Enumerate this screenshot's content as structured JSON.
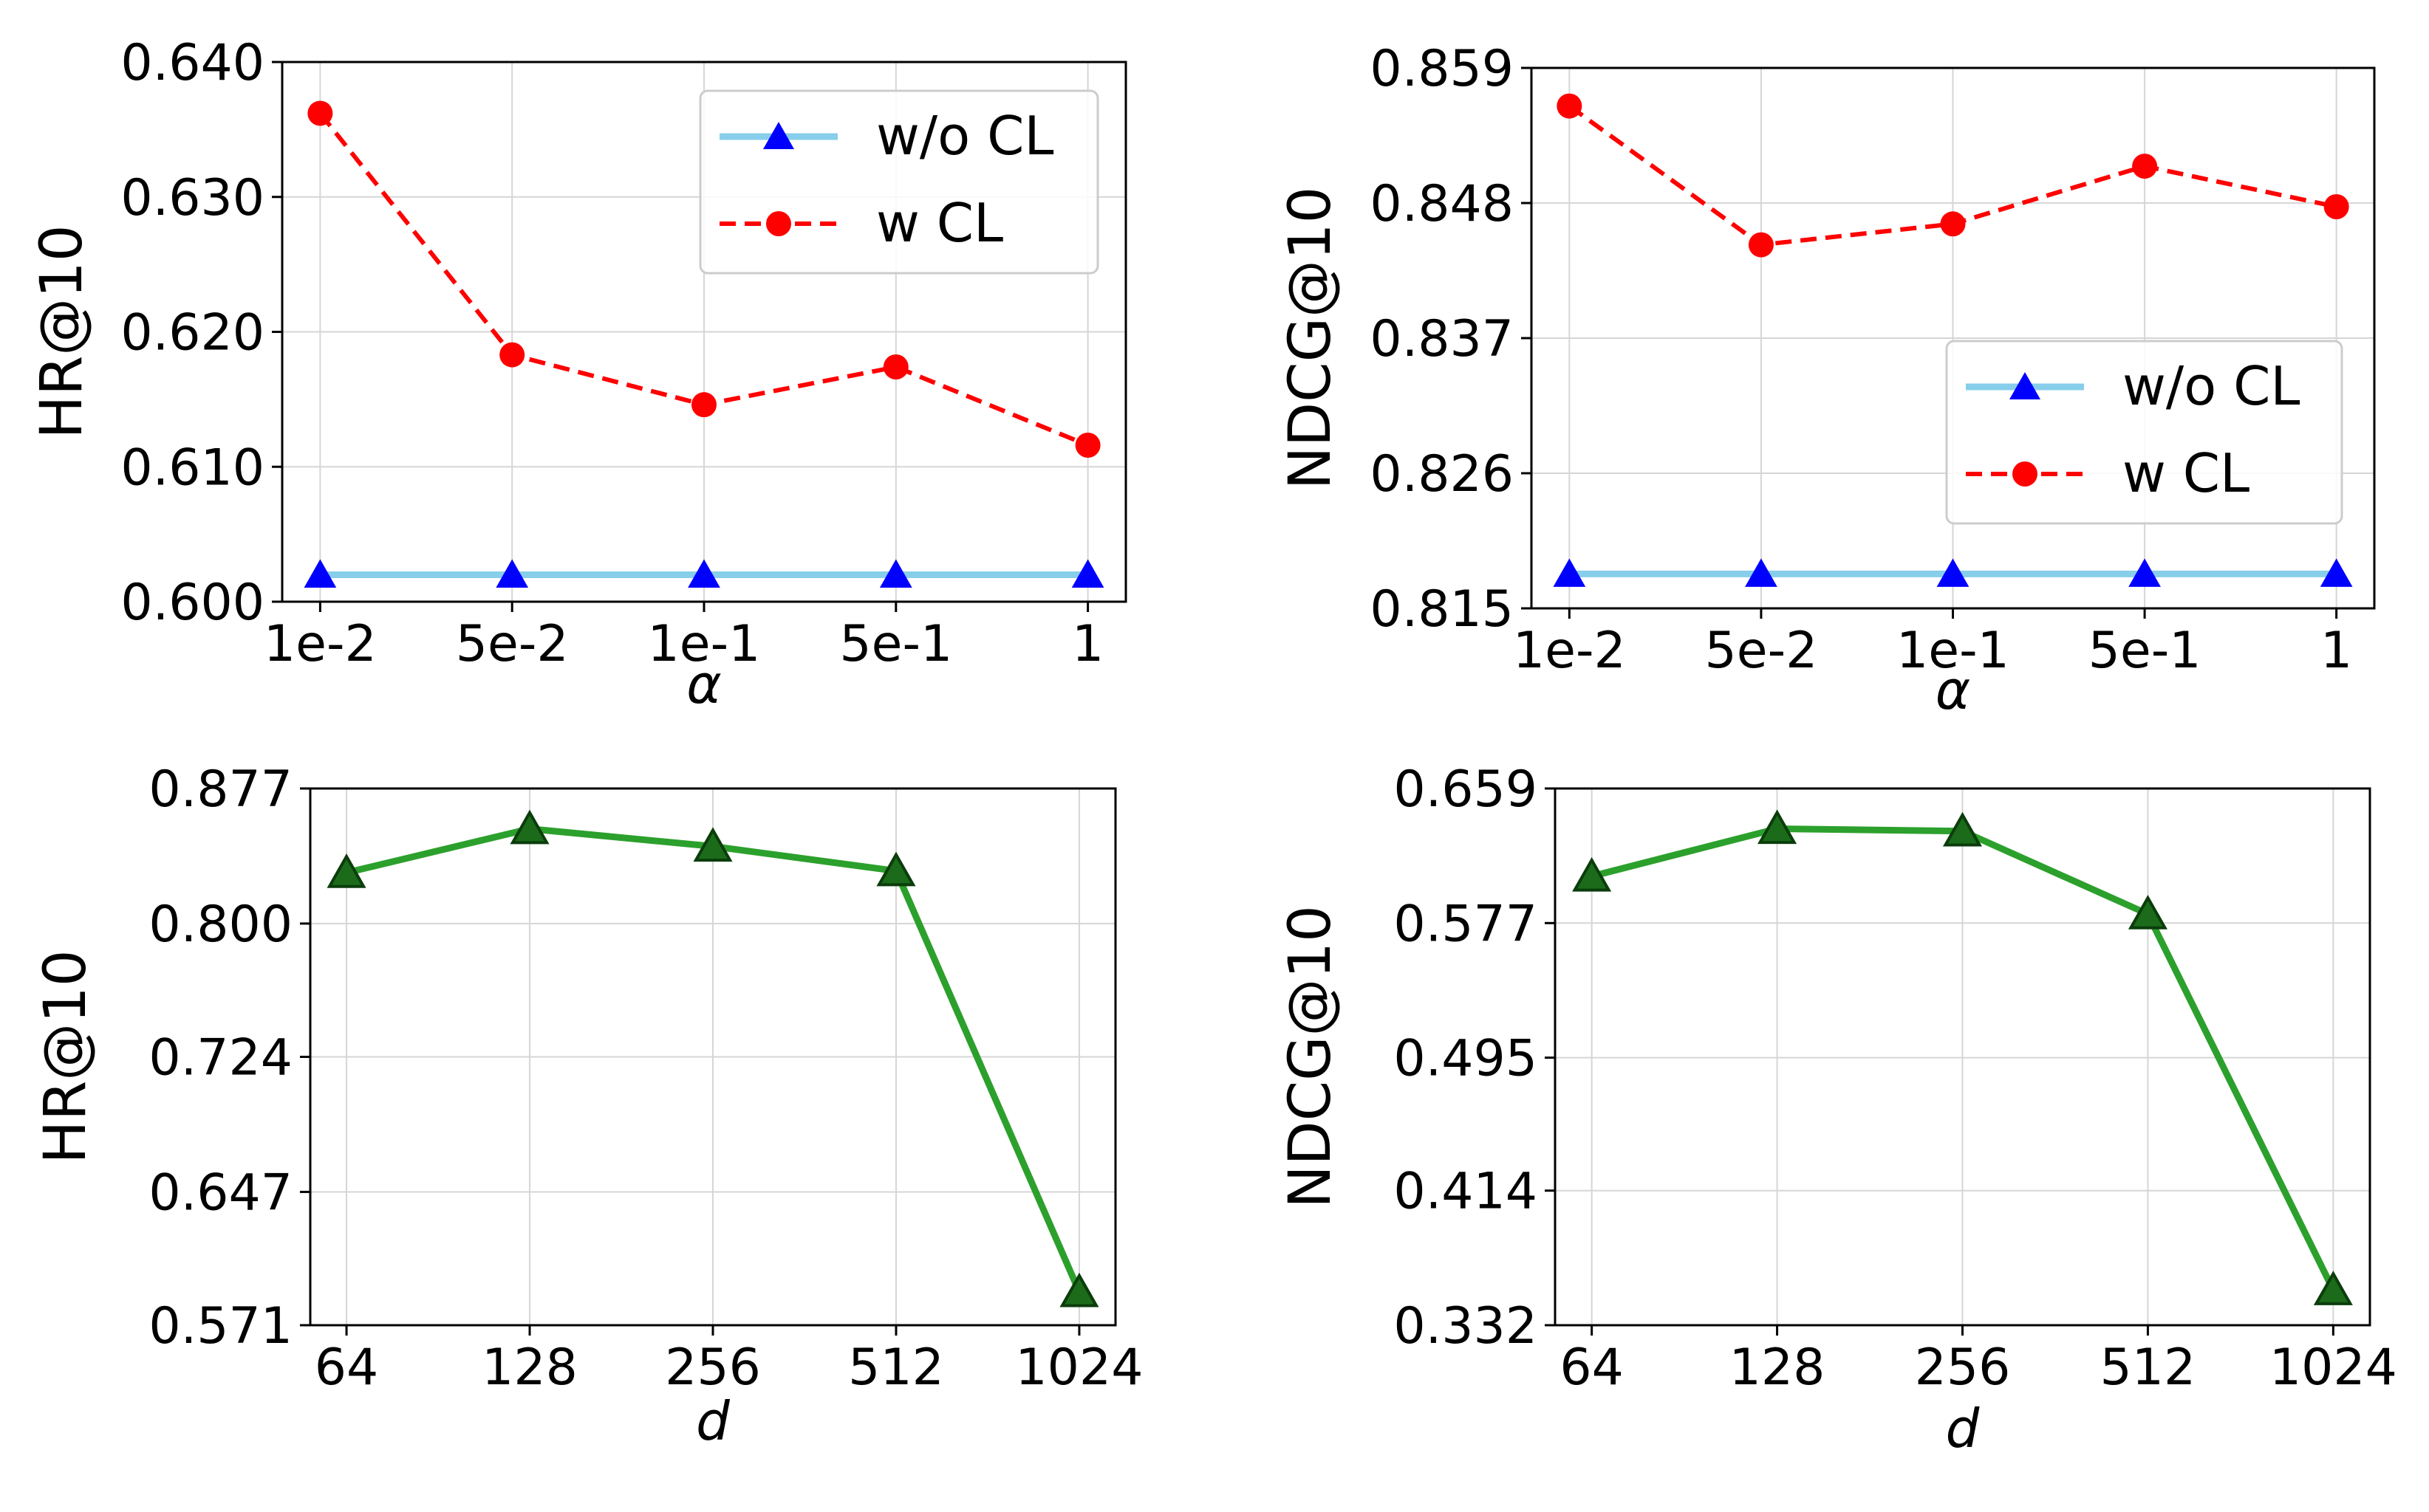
{
  "chart_data": [
    {
      "type": "line",
      "title": "",
      "xlabel": "α",
      "ylabel": "HR@10",
      "categories": [
        "1e-2",
        "5e-2",
        "1e-1",
        "5e-1",
        "1"
      ],
      "ylim": [
        0.6,
        0.64
      ],
      "yticks": [
        "0.600",
        "0.610",
        "0.620",
        "0.630",
        "0.640"
      ],
      "grid": true,
      "legend_position": "top-right",
      "series": [
        {
          "name": "w/o CL",
          "values": [
            0.602,
            0.602,
            0.602,
            0.602,
            0.602
          ],
          "color": "#87CEEB",
          "marker_color": "#0000FF",
          "marker": "triangle",
          "line_style": "solid"
        },
        {
          "name": "w CL",
          "values": [
            0.6362,
            0.6183,
            0.6146,
            0.6174,
            0.6116
          ],
          "color": "#FF0000",
          "marker_color": "#FF0000",
          "marker": "circle",
          "line_style": "dashed"
        }
      ]
    },
    {
      "type": "line",
      "title": "",
      "xlabel": "α",
      "ylabel": "NDCG@10",
      "categories": [
        "1e-2",
        "5e-2",
        "1e-1",
        "5e-1",
        "1"
      ],
      "ylim": [
        0.815,
        0.859
      ],
      "yticks": [
        "0.815",
        "0.826",
        "0.837",
        "0.848",
        "0.859"
      ],
      "grid": true,
      "legend_position": "center-right",
      "series": [
        {
          "name": "w/o CL",
          "values": [
            0.8178,
            0.8178,
            0.8178,
            0.8178,
            0.8178
          ],
          "color": "#87CEEB",
          "marker_color": "#0000FF",
          "marker": "triangle",
          "line_style": "solid"
        },
        {
          "name": "w CL",
          "values": [
            0.8559,
            0.8446,
            0.8463,
            0.851,
            0.8477
          ],
          "color": "#FF0000",
          "marker_color": "#FF0000",
          "marker": "circle",
          "line_style": "dashed"
        }
      ]
    },
    {
      "type": "line",
      "title": "",
      "xlabel": "d",
      "ylabel": "HR@10",
      "categories": [
        "64",
        "128",
        "256",
        "512",
        "1024"
      ],
      "ylim": [
        0.571,
        0.877
      ],
      "yticks": [
        "0.571",
        "0.647",
        "0.724",
        "0.800",
        "0.877"
      ],
      "grid": true,
      "legend_position": "none",
      "series": [
        {
          "name": "",
          "values": [
            0.829,
            0.854,
            0.844,
            0.83,
            0.59
          ],
          "color": "#2CA02C",
          "marker_color": "#1B6B1B",
          "marker": "triangle",
          "line_style": "solid"
        }
      ]
    },
    {
      "type": "line",
      "title": "",
      "xlabel": "d",
      "ylabel": "NDCG@10",
      "categories": [
        "64",
        "128",
        "256",
        "512",
        "1024"
      ],
      "ylim": [
        0.332,
        0.659
      ],
      "yticks": [
        "0.332",
        "0.414",
        "0.495",
        "0.577",
        "0.659"
      ],
      "grid": true,
      "legend_position": "none",
      "series": [
        {
          "name": "",
          "values": [
            0.6055,
            0.6345,
            0.633,
            0.5825,
            0.3535
          ],
          "color": "#2CA02C",
          "marker_color": "#1B6B1B",
          "marker": "triangle",
          "line_style": "solid"
        }
      ]
    }
  ]
}
